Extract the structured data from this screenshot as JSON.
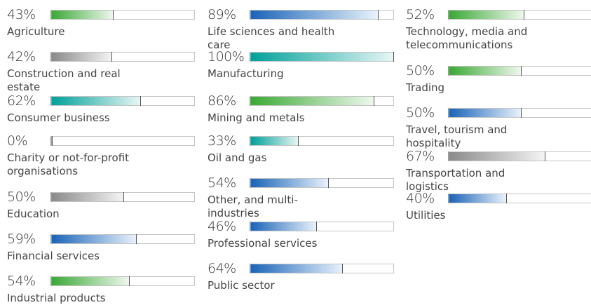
{
  "chart_data": {
    "type": "bar",
    "categories": [
      "Agriculture",
      "Construction and real estate",
      "Consumer business",
      "Charity or not-for-profit organisations",
      "Education",
      "Financial services",
      "Industrial products",
      "Life sciences and health care",
      "Manufacturing",
      "Mining and metals",
      "Oil and gas",
      "Other, and multi-industries",
      "Professional services",
      "Public sector",
      "Technology, media and telecommunications",
      "Trading",
      "Travel, tourism and hospitality",
      "Transportation and logistics",
      "Utilities"
    ],
    "values": [
      43,
      42,
      62,
      0,
      50,
      59,
      54,
      89,
      100,
      86,
      33,
      54,
      46,
      64,
      52,
      50,
      50,
      67,
      40
    ],
    "value_labels": [
      "43%",
      "42%",
      "62%",
      "0%",
      "50%",
      "59%",
      "54%",
      "89%",
      "100%",
      "86%",
      "33%",
      "54%",
      "46%",
      "64%",
      "52%",
      "50%",
      "50%",
      "67%",
      "40%"
    ],
    "colors": [
      "#3aa935",
      "#8a8a8a",
      "#00a19a",
      "#8a8a8a",
      "#8a8a8a",
      "#1a64b8",
      "#3aa935",
      "#1a64b8",
      "#00a19a",
      "#3aa935",
      "#00a19a",
      "#1a64b8",
      "#1a64b8",
      "#1a64b8",
      "#3aa935",
      "#3aa935",
      "#1a64b8",
      "#8a8a8a",
      "#1a64b8"
    ],
    "xlim": [
      0,
      100
    ]
  }
}
